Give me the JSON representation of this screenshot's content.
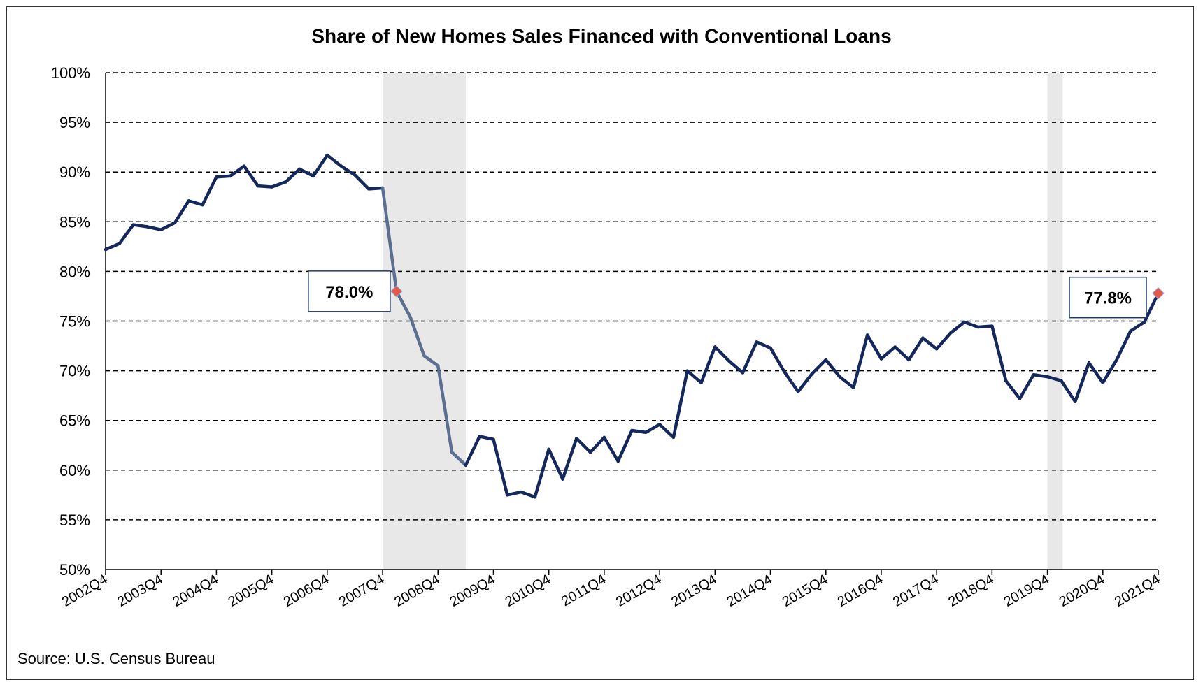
{
  "chart_data": {
    "type": "line",
    "title": "Share of New Homes Sales Financed with Conventional Loans",
    "source": "Source: U.S. Census Bureau",
    "ylim": [
      0.5,
      1.0
    ],
    "yticks": [
      0.5,
      0.55,
      0.6,
      0.65,
      0.7,
      0.75,
      0.8,
      0.85,
      0.9,
      0.95,
      1.0
    ],
    "ytick_labels": [
      "50%",
      "55%",
      "60%",
      "65%",
      "70%",
      "75%",
      "80%",
      "85%",
      "90%",
      "95%",
      "100%"
    ],
    "grid": "horizontal dashed",
    "x_labels": [
      "2002Q4",
      "2003Q4",
      "2004Q4",
      "2005Q4",
      "2006Q4",
      "2007Q4",
      "2008Q4",
      "2009Q4",
      "2010Q4",
      "2011Q4",
      "2012Q4",
      "2013Q4",
      "2014Q4",
      "2015Q4",
      "2016Q4",
      "2017Q4",
      "2018Q4",
      "2019Q4",
      "2020Q4",
      "2021Q4"
    ],
    "x_start": "2002Q4",
    "x_end": "2021Q4",
    "recessions": [
      {
        "start": "2007Q4",
        "end": "2009Q2"
      },
      {
        "start": "2019Q4",
        "end": "2020Q1"
      }
    ],
    "series": [
      {
        "color": "#14285c",
        "recession_color": "#5b6f91",
        "values": [
          0.822,
          0.828,
          0.847,
          0.845,
          0.842,
          0.849,
          0.871,
          0.867,
          0.895,
          0.896,
          0.906,
          0.886,
          0.885,
          0.89,
          0.903,
          0.896,
          0.917,
          0.906,
          0.897,
          0.883,
          0.884,
          0.78,
          0.754,
          0.715,
          0.705,
          0.618,
          0.605,
          0.634,
          0.631,
          0.575,
          0.578,
          0.573,
          0.621,
          0.591,
          0.632,
          0.618,
          0.633,
          0.609,
          0.64,
          0.638,
          0.646,
          0.633,
          0.7,
          0.688,
          0.724,
          0.71,
          0.698,
          0.729,
          0.723,
          0.699,
          0.679,
          0.697,
          0.711,
          0.694,
          0.683,
          0.736,
          0.712,
          0.724,
          0.711,
          0.733,
          0.722,
          0.738,
          0.749,
          0.744,
          0.745,
          0.69,
          0.672,
          0.696,
          0.694,
          0.69,
          0.669,
          0.708,
          0.688,
          0.711,
          0.74,
          0.749,
          0.778
        ]
      }
    ],
    "annotations": [
      {
        "label": "78.0%",
        "x": "2008Q1",
        "value": 0.78,
        "marker_color": "#e8574a"
      },
      {
        "label": "77.8%",
        "x": "2021Q4",
        "value": 0.778,
        "marker_color": "#e8574a"
      }
    ],
    "recession_fill": "#e8e8e8",
    "grid_color": "#000000",
    "axis_color": "#000000"
  }
}
